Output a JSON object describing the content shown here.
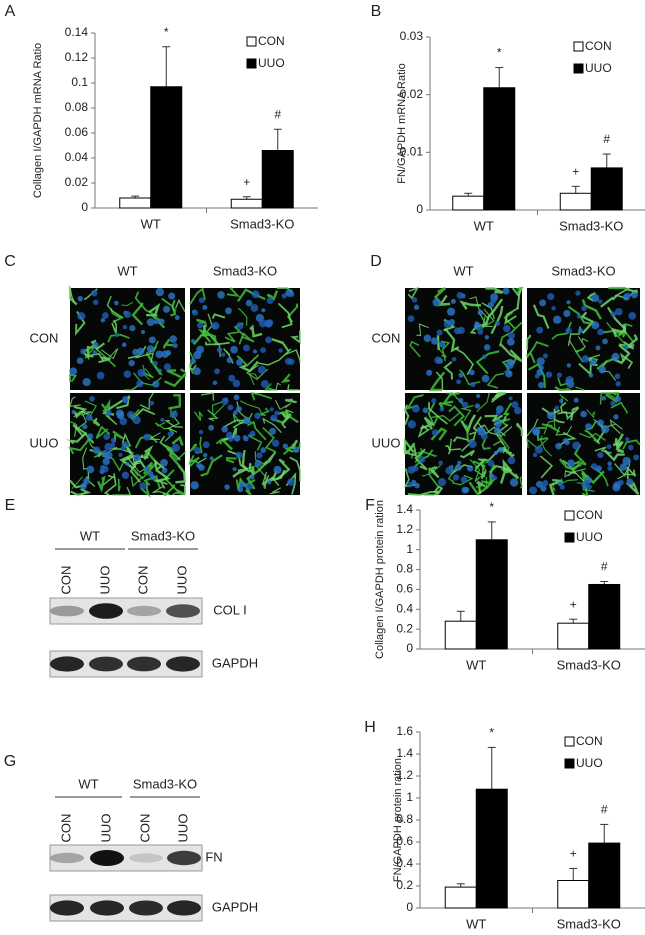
{
  "chart_data": [
    {
      "type": "bar",
      "label": "A",
      "ylabel": "Collagen I/GAPDH mRNA Ratio",
      "categories": [
        "WT",
        "Smad3-KO"
      ],
      "ylim": [
        0,
        0.14
      ],
      "yticks": [
        0,
        0.02,
        0.04,
        0.06,
        0.08,
        0.1,
        0.12,
        0.14
      ],
      "series": [
        {
          "name": "CON",
          "color": "#ffffff",
          "values": [
            0.008,
            0.007
          ],
          "errors": [
            0.0015,
            0.002
          ],
          "markers": [
            null,
            "+"
          ]
        },
        {
          "name": "UUO",
          "color": "#000000",
          "values": [
            0.097,
            0.046
          ],
          "errors": [
            0.032,
            0.017
          ],
          "markers": [
            "*",
            "#"
          ]
        }
      ]
    },
    {
      "type": "bar",
      "label": "B",
      "ylabel": "FN/GAPDH mRNA Ratio",
      "categories": [
        "WT",
        "Smad3-KO"
      ],
      "ylim": [
        0,
        0.03
      ],
      "yticks": [
        0,
        0.01,
        0.02,
        0.03
      ],
      "series": [
        {
          "name": "CON",
          "color": "#ffffff",
          "values": [
            0.0024,
            0.0029
          ],
          "errors": [
            0.0005,
            0.0012
          ],
          "markers": [
            null,
            "+"
          ]
        },
        {
          "name": "UUO",
          "color": "#000000",
          "values": [
            0.0212,
            0.0073
          ],
          "errors": [
            0.0035,
            0.0024
          ],
          "markers": [
            "*",
            "#"
          ]
        }
      ]
    },
    {
      "type": "bar",
      "label": "F",
      "ylabel": "Collagen I/GAPDH protein ration",
      "categories": [
        "WT",
        "Smad3-KO"
      ],
      "ylim": [
        0,
        1.4
      ],
      "yticks": [
        0,
        0.2,
        0.4,
        0.6,
        0.8,
        1,
        1.2,
        1.4
      ],
      "series": [
        {
          "name": "CON",
          "color": "#ffffff",
          "values": [
            0.28,
            0.26
          ],
          "errors": [
            0.1,
            0.04
          ],
          "markers": [
            null,
            "+"
          ]
        },
        {
          "name": "UUO",
          "color": "#000000",
          "values": [
            1.1,
            0.65
          ],
          "errors": [
            0.18,
            0.03
          ],
          "markers": [
            "*",
            "#"
          ]
        }
      ]
    },
    {
      "type": "bar",
      "label": "H",
      "ylabel": "FN/GAPDH protein ration",
      "categories": [
        "WT",
        "Smad3-KO"
      ],
      "ylim": [
        0,
        1.6
      ],
      "yticks": [
        0,
        0.2,
        0.4,
        0.6,
        0.8,
        1,
        1.2,
        1.4,
        1.6
      ],
      "series": [
        {
          "name": "CON",
          "color": "#ffffff",
          "values": [
            0.19,
            0.25
          ],
          "errors": [
            0.03,
            0.11
          ],
          "markers": [
            null,
            "+"
          ]
        },
        {
          "name": "UUO",
          "color": "#000000",
          "values": [
            1.08,
            0.59
          ],
          "errors": [
            0.38,
            0.17
          ],
          "markers": [
            "*",
            "#"
          ]
        }
      ]
    }
  ],
  "image_panels": [
    {
      "label": "C",
      "columns": [
        "WT",
        "Smad3-KO"
      ],
      "rows": [
        "CON",
        "UUO"
      ]
    },
    {
      "label": "D",
      "columns": [
        "WT",
        "Smad3-KO"
      ],
      "rows": [
        "CON",
        "UUO"
      ]
    }
  ],
  "blot_panels": [
    {
      "label": "E",
      "groups": [
        "WT",
        "Smad3-KO"
      ],
      "lanes": [
        "CON",
        "UUO",
        "CON",
        "UUO"
      ],
      "bands": [
        "COL I",
        "GAPDH"
      ]
    },
    {
      "label": "G",
      "groups": [
        "WT",
        "Smad3-KO"
      ],
      "lanes": [
        "CON",
        "UUO",
        "CON",
        "UUO"
      ],
      "bands": [
        "FN",
        "GAPDH"
      ]
    }
  ]
}
